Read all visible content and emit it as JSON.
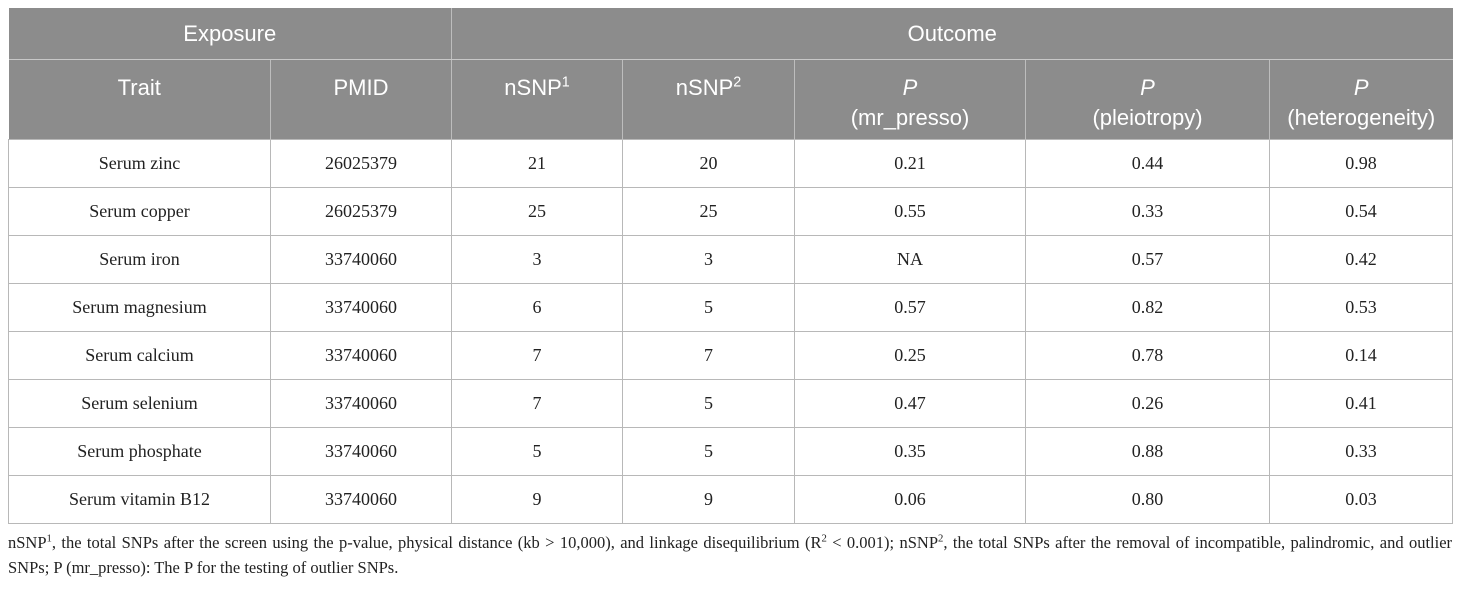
{
  "table": {
    "group_headers": [
      "Exposure",
      "Outcome"
    ],
    "headers": {
      "trait": "Trait",
      "pmid": "PMID",
      "nsnp1_base": "nSNP",
      "nsnp1_sup": "1",
      "nsnp2_base": "nSNP",
      "nsnp2_sup": "2",
      "p_letter": "P",
      "mr_presso": "(mr_presso)",
      "pleiotropy": "(pleiotropy)",
      "heterogeneity": "(heterogeneity)"
    },
    "rows": [
      [
        "Serum zinc",
        "26025379",
        "21",
        "20",
        "0.21",
        "0.44",
        "0.98"
      ],
      [
        "Serum copper",
        "26025379",
        "25",
        "25",
        "0.55",
        "0.33",
        "0.54"
      ],
      [
        "Serum iron",
        "33740060",
        "3",
        "3",
        "NA",
        "0.57",
        "0.42"
      ],
      [
        "Serum magnesium",
        "33740060",
        "6",
        "5",
        "0.57",
        "0.82",
        "0.53"
      ],
      [
        "Serum calcium",
        "33740060",
        "7",
        "7",
        "0.25",
        "0.78",
        "0.14"
      ],
      [
        "Serum selenium",
        "33740060",
        "7",
        "5",
        "0.47",
        "0.26",
        "0.41"
      ],
      [
        "Serum phosphate",
        "33740060",
        "5",
        "5",
        "0.35",
        "0.88",
        "0.33"
      ],
      [
        "Serum vitamin B12",
        "33740060",
        "9",
        "9",
        "0.06",
        "0.80",
        "0.03"
      ]
    ]
  },
  "footnote": {
    "part1": "nSNP",
    "sup1": "1",
    "part2": ", the total SNPs after the screen using the p-value, physical distance (kb > 10,000), and linkage disequilibrium (R",
    "sup2": "2",
    "part3": " < 0.001); nSNP",
    "sup3": "2",
    "part4": ", the total SNPs after the removal of incompatible, palindromic, and outlier SNPs; P (mr_presso): The P for the testing of outlier SNPs."
  }
}
